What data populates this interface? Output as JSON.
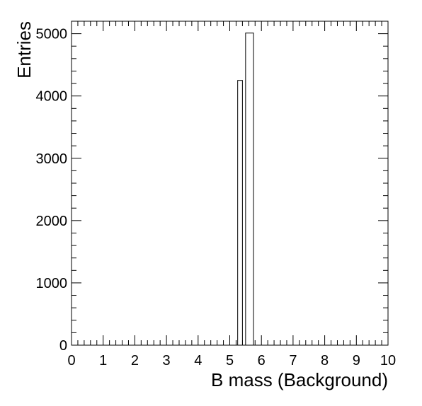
{
  "chart_data": {
    "type": "bar",
    "xlabel": "B mass (Background)",
    "ylabel": "Entries",
    "xlim": [
      0,
      10
    ],
    "ylim": [
      0,
      5200
    ],
    "x_ticks": [
      "0",
      "1",
      "2",
      "3",
      "4",
      "5",
      "6",
      "7",
      "8",
      "9",
      "10"
    ],
    "y_ticks": [
      "0",
      "1000",
      "2000",
      "3000",
      "4000",
      "5000"
    ],
    "bins": [
      {
        "x0": 5.25,
        "x1": 5.4,
        "value": 4250
      },
      {
        "x0": 5.5,
        "x1": 5.75,
        "value": 5010
      }
    ],
    "grid": false,
    "colors": {
      "bar_fill": "#ffffff",
      "bar_edge": "#000000",
      "frame": "#000000"
    }
  }
}
